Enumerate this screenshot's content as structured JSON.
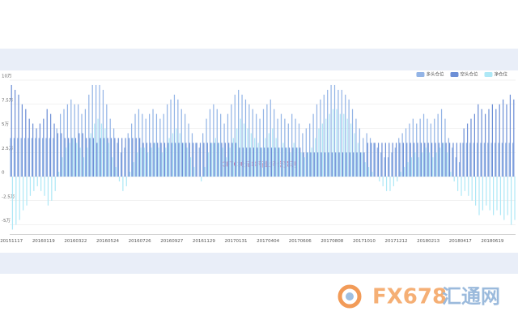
{
  "chart_data": {
    "type": "bar",
    "annotation": "CFTC美元非商业持仓预测",
    "watermark": {
      "brand": "FX678",
      "name": "汇通网"
    },
    "categories": [
      "20151117",
      null,
      null,
      null,
      null,
      null,
      null,
      null,
      null,
      "20160119",
      null,
      null,
      null,
      null,
      null,
      null,
      null,
      null,
      "20160322",
      null,
      null,
      null,
      null,
      null,
      null,
      null,
      null,
      "20160524",
      null,
      null,
      null,
      null,
      null,
      null,
      null,
      null,
      "20160726",
      null,
      null,
      null,
      null,
      null,
      null,
      null,
      null,
      "20160927",
      null,
      null,
      null,
      null,
      null,
      null,
      null,
      null,
      "20161129",
      null,
      null,
      null,
      null,
      null,
      null,
      null,
      null,
      "20170131",
      null,
      null,
      null,
      null,
      null,
      null,
      null,
      null,
      "20170404",
      null,
      null,
      null,
      null,
      null,
      null,
      null,
      null,
      "20170606",
      null,
      null,
      null,
      null,
      null,
      null,
      null,
      null,
      "20170808",
      null,
      null,
      null,
      null,
      null,
      null,
      null,
      null,
      "20171010",
      null,
      null,
      null,
      null,
      null,
      null,
      null,
      null,
      "20171212",
      null,
      null,
      null,
      null,
      null,
      null,
      null,
      null,
      "20180213",
      null,
      null,
      null,
      null,
      null,
      null,
      null,
      null,
      "20180417",
      null,
      null,
      null,
      null,
      null,
      null,
      null,
      null,
      "20180619",
      null,
      null,
      null,
      null,
      null,
      null
    ],
    "series": [
      {
        "name": "多头仓位",
        "color": "#93b4e6",
        "values": [
          4,
          4,
          4,
          4,
          4,
          4,
          4,
          4,
          4,
          4,
          4,
          4,
          4,
          5,
          6.5,
          7,
          7.5,
          8,
          7.5,
          7.5,
          6.5,
          7,
          8.5,
          9.5,
          9.5,
          9.5,
          9,
          7.5,
          6,
          5,
          3.5,
          2.5,
          3,
          4.5,
          5.5,
          6.5,
          7,
          6.5,
          6,
          6.5,
          7,
          6.5,
          6,
          6.5,
          7.5,
          8,
          8.5,
          8,
          7,
          6.5,
          5.5,
          4.5,
          3.5,
          3,
          4.5,
          6,
          7,
          7.5,
          7,
          6.5,
          5.5,
          6.5,
          7.5,
          8.5,
          9,
          8.5,
          8,
          7.5,
          7,
          6.5,
          6,
          7,
          7.5,
          8,
          7,
          6,
          6.5,
          6,
          5.5,
          6.5,
          6,
          5.5,
          4.5,
          5,
          5.5,
          6.5,
          7.5,
          8,
          8.5,
          9,
          9.5,
          9.5,
          9,
          9,
          8.5,
          8,
          7,
          6,
          5,
          4,
          4.5,
          4,
          3.5,
          3,
          2.5,
          2,
          2,
          2.5,
          3,
          4,
          4.5,
          5,
          5.5,
          6,
          5.5,
          6,
          6.5,
          6,
          5.5,
          6,
          6.5,
          7,
          6,
          4,
          3,
          2,
          1.5,
          3.5,
          3.5,
          3.5,
          3.5,
          3.5,
          3.5,
          3.5,
          3.5,
          3.5,
          3.5,
          3.5,
          3.5,
          3.5,
          3.5,
          3.5
        ]
      },
      {
        "name": "空头仓位",
        "color": "#6d8fd6",
        "values": [
          9.5,
          9,
          8.5,
          7.5,
          7,
          6,
          5.5,
          5,
          5.5,
          6,
          7,
          6.5,
          5.5,
          4.5,
          4.5,
          4,
          4,
          4,
          4,
          4.5,
          4.5,
          4,
          4,
          4,
          3.5,
          4,
          4,
          4,
          4,
          4,
          4,
          4,
          4,
          4,
          4,
          4,
          4,
          3.5,
          3.5,
          3.5,
          3.5,
          3.5,
          3.5,
          3.5,
          3.5,
          3.5,
          3.5,
          3.5,
          3.5,
          3.5,
          3.5,
          3.5,
          3.5,
          3.5,
          3.5,
          3.5,
          3.5,
          3.5,
          3.5,
          3.5,
          3.5,
          3.5,
          3.5,
          3.5,
          3,
          3,
          3,
          3,
          3,
          3,
          3,
          3,
          3,
          3,
          3,
          3,
          3,
          3,
          3,
          3,
          3,
          3,
          2.5,
          2.5,
          2.5,
          2.5,
          2.5,
          2.5,
          2.5,
          2.5,
          2.5,
          2.5,
          2.5,
          2.5,
          2.5,
          2.5,
          2.5,
          2.5,
          2.5,
          2.5,
          3.5,
          3.5,
          3.5,
          3.5,
          3.5,
          3.5,
          3.5,
          3.5,
          3.5,
          3.5,
          3.5,
          3.5,
          3.5,
          3.5,
          3.5,
          3.5,
          3.5,
          3.5,
          3.5,
          3.5,
          3.5,
          3.5,
          3.5,
          3.5,
          3.5,
          3.5,
          3.5,
          5,
          5.5,
          6,
          6.5,
          7.5,
          7,
          6.5,
          7,
          7.5,
          7,
          7.5,
          8,
          7.5,
          8.5,
          8
        ]
      },
      {
        "name": "净仓位",
        "color": "#aee8f6",
        "values": [
          -5.5,
          -5,
          -4.5,
          -3.5,
          -3,
          -2,
          -1.5,
          -1,
          -1.5,
          -2,
          -3,
          -2.5,
          -1.5,
          0.5,
          2,
          3,
          3.5,
          4,
          3.5,
          3,
          2,
          3,
          4.5,
          5.5,
          6,
          5.5,
          5,
          3.5,
          2,
          1,
          -0.5,
          -1.5,
          -1,
          0.5,
          1.5,
          2.5,
          3,
          3,
          2.5,
          3,
          3.5,
          3,
          2.5,
          3,
          4,
          4.5,
          5,
          4.5,
          3.5,
          3,
          2,
          1,
          0,
          -0.5,
          1,
          2.5,
          3.5,
          4,
          3.5,
          3,
          2,
          3,
          4,
          5,
          6,
          5.5,
          5,
          4.5,
          4,
          3.5,
          3,
          4,
          4.5,
          5,
          4,
          3,
          3.5,
          3,
          2.5,
          3.5,
          3,
          2.5,
          2,
          2.5,
          3,
          4,
          5,
          5.5,
          6,
          6.5,
          7,
          7,
          6.5,
          6.5,
          6,
          5.5,
          4.5,
          3.5,
          2.5,
          1.5,
          1,
          0.5,
          0,
          -0.5,
          -1,
          -1.5,
          -1.5,
          -1,
          -0.5,
          0.5,
          1,
          1.5,
          2,
          2.5,
          2,
          2.5,
          3,
          2.5,
          2,
          2.5,
          3,
          3.5,
          2.5,
          0.5,
          -0.5,
          -1.5,
          -2,
          -1.5,
          -2,
          -2.5,
          -3,
          -4,
          -3.5,
          -3,
          -3.5,
          -4,
          -3.5,
          -4,
          -4.5,
          -4,
          -5,
          -4.5
        ]
      }
    ],
    "ylim": [
      -6,
      10
    ],
    "yticks": [
      {
        "value": -5,
        "label": "-5万"
      },
      {
        "value": -2.5,
        "label": "-2.5万"
      },
      0,
      {
        "value": 2.5,
        "label": "2.5万"
      },
      {
        "value": 5,
        "label": "5万"
      },
      {
        "value": 7.5,
        "label": "7.5万"
      },
      {
        "value": 10,
        "label": "10万"
      }
    ],
    "grid": true,
    "legend": "top-right"
  }
}
